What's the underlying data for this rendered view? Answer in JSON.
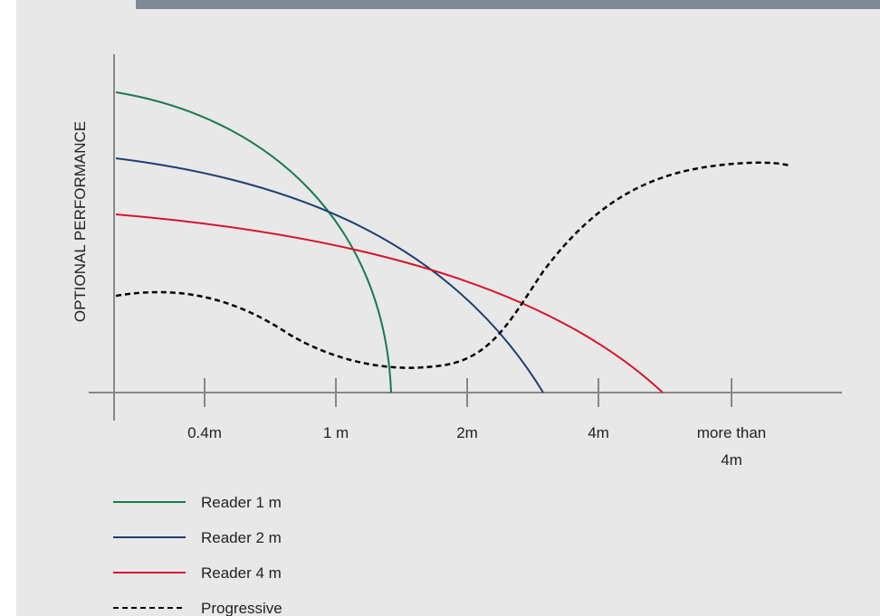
{
  "diagram": {
    "y_axis_label": "OPTIONAL PERFORMANCE",
    "x_ticks": [
      "0.4m",
      "1 m",
      "2m",
      "4m",
      "more than\n4m"
    ],
    "legend": [
      {
        "label": "Reader 1 m",
        "color": "#1a7a4c",
        "dashed": false
      },
      {
        "label": "Reader 2 m",
        "color": "#1d3f73",
        "dashed": false
      },
      {
        "label": "Reader 4 m",
        "color": "#d5162f",
        "dashed": false
      },
      {
        "label": "Progressive",
        "color": "#000000",
        "dashed": true
      }
    ]
  }
}
